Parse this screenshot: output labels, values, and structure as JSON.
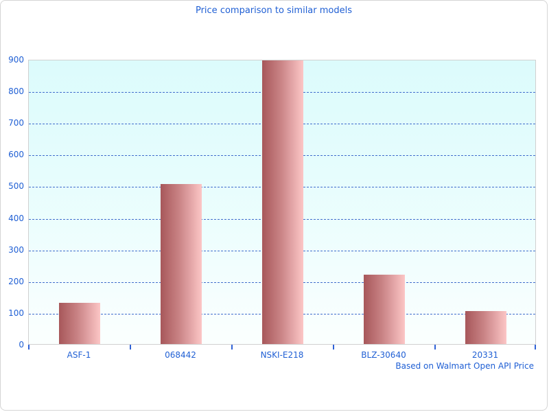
{
  "header": {
    "title": "Price comparison to similar models"
  },
  "footer": {
    "caption": "Based on Walmart Open API Price"
  },
  "colors": {
    "text_blue": "#1f5fd4",
    "grid_blue": "#3f6ccc",
    "tick_blue": "#2f62d6",
    "bar_gradient_dark": "#a7575a",
    "bar_gradient_light": "#fcc6c6",
    "plot_bg_top": "#dcfbfc",
    "plot_bg_bottom": "#fbfffe",
    "border_gray": "#d4d4d4"
  },
  "chart_data": {
    "type": "bar",
    "title": "Price comparison to similar models",
    "categories": [
      "ASF-1",
      "068442",
      "NSKI-E218",
      "BLZ-30640",
      "20331"
    ],
    "values": [
      130,
      505,
      897,
      220,
      104
    ],
    "xlabel": "",
    "ylabel": "",
    "ylim": [
      0,
      900
    ],
    "ytick_interval": 100,
    "yticks": [
      0,
      100,
      200,
      300,
      400,
      500,
      600,
      700,
      800,
      900
    ],
    "grid": "horizontal-dashed",
    "legend": "none",
    "annotation": "Based on Walmart Open API Price"
  }
}
